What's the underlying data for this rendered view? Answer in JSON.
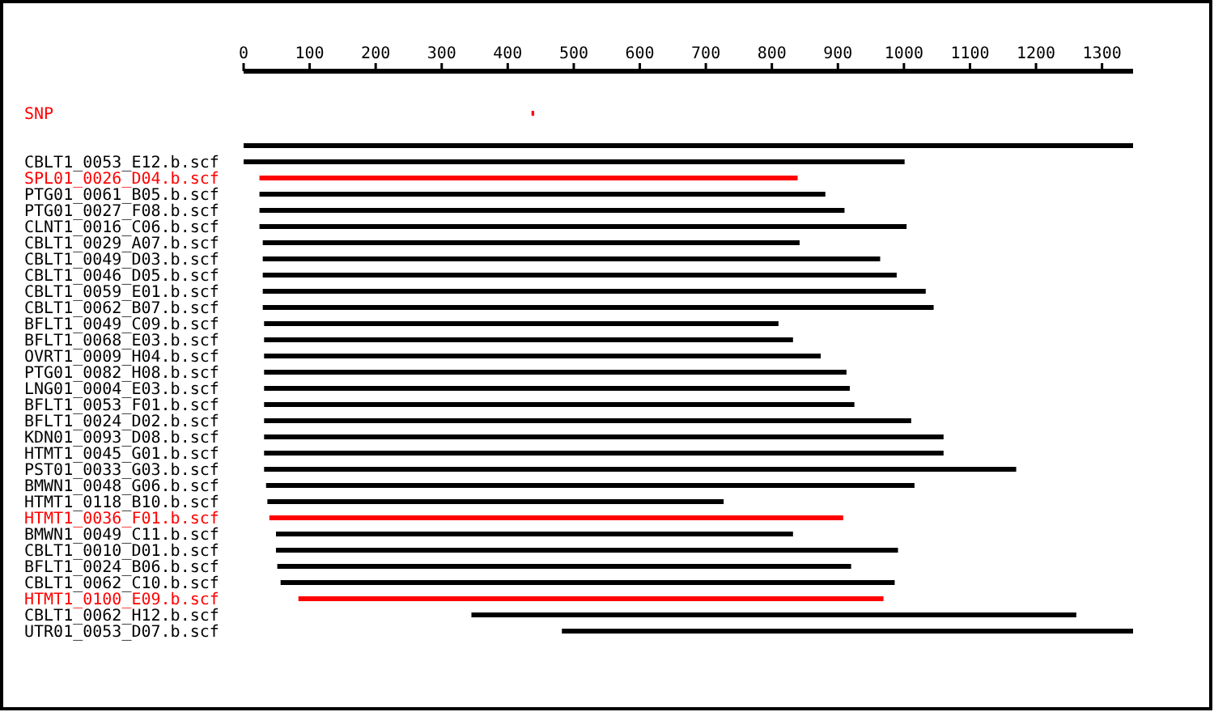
{
  "chart_data": {
    "type": "bar",
    "orientation": "horizontal",
    "xlim": [
      0,
      1347
    ],
    "xticks": [
      0,
      100,
      200,
      300,
      400,
      500,
      600,
      700,
      800,
      900,
      1000,
      1100,
      1200,
      1300
    ],
    "grid": false,
    "categories": [
      "SNP",
      null,
      null,
      "CBLT1_0053_E12.b.scf",
      "SPL01_0026_D04.b.scf",
      "PTG01_0061_B05.b.scf",
      "PTG01_0027_F08.b.scf",
      "CLNT1_0016_C06.b.scf",
      "CBLT1_0029_A07.b.scf",
      "CBLT1_0049_D03.b.scf",
      "CBLT1_0046_D05.b.scf",
      "CBLT1_0059_E01.b.scf",
      "CBLT1_0062_B07.b.scf",
      "BFLT1_0049_C09.b.scf",
      "BFLT1_0068_E03.b.scf",
      "OVRT1_0009_H04.b.scf",
      "PTG01_0082_H08.b.scf",
      "LNG01_0004_E03.b.scf",
      "BFLT1_0053_F01.b.scf",
      "BFLT1_0024_D02.b.scf",
      "KDN01_0093_D08.b.scf",
      "HTMT1_0045_G01.b.scf",
      "PST01_0033_G03.b.scf",
      "BMWN1_0048_G06.b.scf",
      "HTMT1_0118_B10.b.scf",
      "HTMT1_0036_F01.b.scf",
      "BMWN1_0049_C11.b.scf",
      "CBLT1_0010_D01.b.scf",
      "BFLT1_0024_B06.b.scf",
      "CBLT1_0062_C10.b.scf",
      "HTMT1_0100_E09.b.scf",
      "CBLT1_0062_H12.b.scf",
      "UTR01_0053_D07.b.scf"
    ],
    "base": [
      436,
      null,
      0,
      0,
      24,
      24,
      24,
      24,
      29,
      29,
      29,
      29,
      29,
      31,
      31,
      31,
      31,
      31,
      31,
      31,
      31,
      31,
      31,
      34,
      36,
      39,
      49,
      49,
      51,
      56,
      83,
      345,
      482
    ],
    "values": [
      4,
      null,
      1347,
      1001,
      815,
      857,
      886,
      980,
      813,
      935,
      960,
      1004,
      1016,
      779,
      801,
      843,
      882,
      887,
      894,
      980,
      1029,
      1029,
      1139,
      982,
      691,
      869,
      783,
      942,
      869,
      930,
      886,
      916,
      865
    ],
    "colors": [
      "#ff0000",
      null,
      "#000000",
      "#000000",
      "#ff0000",
      "#000000",
      "#000000",
      "#000000",
      "#000000",
      "#000000",
      "#000000",
      "#000000",
      "#000000",
      "#000000",
      "#000000",
      "#000000",
      "#000000",
      "#000000",
      "#000000",
      "#000000",
      "#000000",
      "#000000",
      "#000000",
      "#000000",
      "#000000",
      "#ff0000",
      "#000000",
      "#000000",
      "#000000",
      "#000000",
      "#ff0000",
      "#000000",
      "#000000"
    ]
  }
}
